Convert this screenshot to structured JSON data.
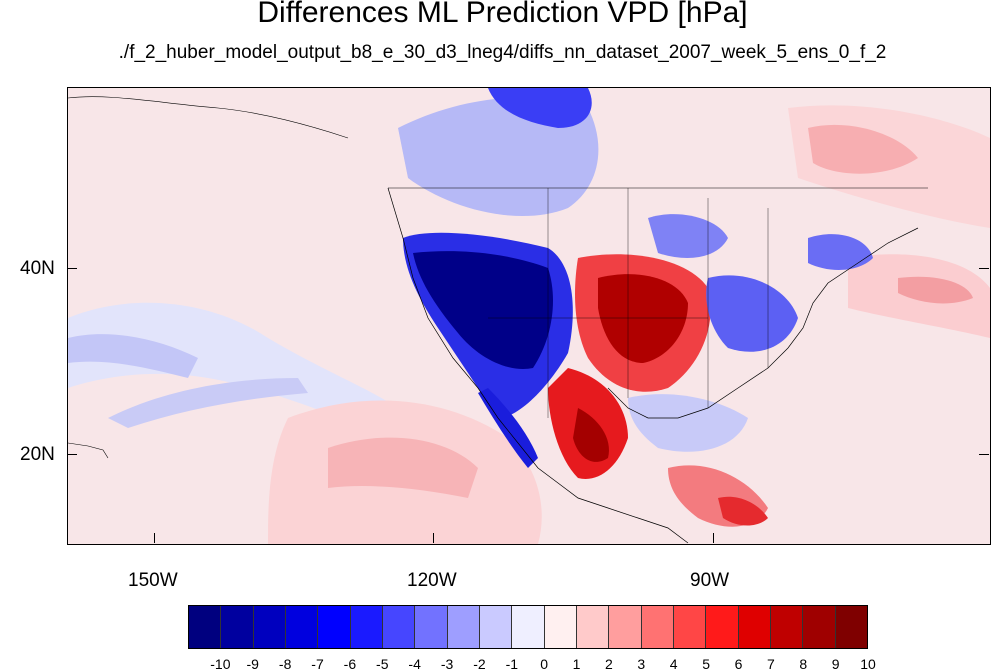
{
  "title": "Differences ML Prediction VPD [hPa]",
  "subtitle": "./f_2_huber_model_output_b8_e_30_d3_lneg4/diffs_nn_dataset_2007_week_5_ens_0_f_2",
  "axes": {
    "x_ticks": [
      "150W",
      "120W",
      "90W"
    ],
    "y_ticks": [
      "40N",
      "20N"
    ]
  },
  "colorbar": {
    "labels": [
      "-10",
      "-9",
      "-8",
      "-7",
      "-6",
      "-5",
      "-4",
      "-3",
      "-2",
      "-1",
      "0",
      "1",
      "2",
      "3",
      "4",
      "5",
      "6",
      "7",
      "8",
      "9",
      "10"
    ],
    "colors": [
      "#00007f",
      "#00009f",
      "#0000bf",
      "#0000df",
      "#0000ff",
      "#1a1aff",
      "#4646ff",
      "#7272ff",
      "#9e9eff",
      "#cacaff",
      "#efefff",
      "#fff0f0",
      "#ffcaca",
      "#ff9e9e",
      "#ff7272",
      "#ff4646",
      "#ff1a1a",
      "#df0000",
      "#bf0000",
      "#9f0000",
      "#7f0000"
    ]
  },
  "chart_data": {
    "type": "heatmap",
    "title": "Differences ML Prediction VPD [hPa]",
    "subtitle": "./f_2_huber_model_output_b8_e_30_d3_lneg4/diffs_nn_dataset_2007_week_5_ens_0_f_2",
    "x_tick_labels": [
      "150W",
      "120W",
      "90W"
    ],
    "y_tick_labels": [
      "40N",
      "20N"
    ],
    "lon_range": [
      -159,
      -61
    ],
    "lat_range": [
      10,
      58
    ],
    "color_levels": [
      -10,
      -9,
      -8,
      -7,
      -6,
      -5,
      -4,
      -3,
      -2,
      -1,
      0,
      1,
      2,
      3,
      4,
      5,
      6,
      7,
      8,
      9,
      10
    ],
    "units": "hPa"
  }
}
